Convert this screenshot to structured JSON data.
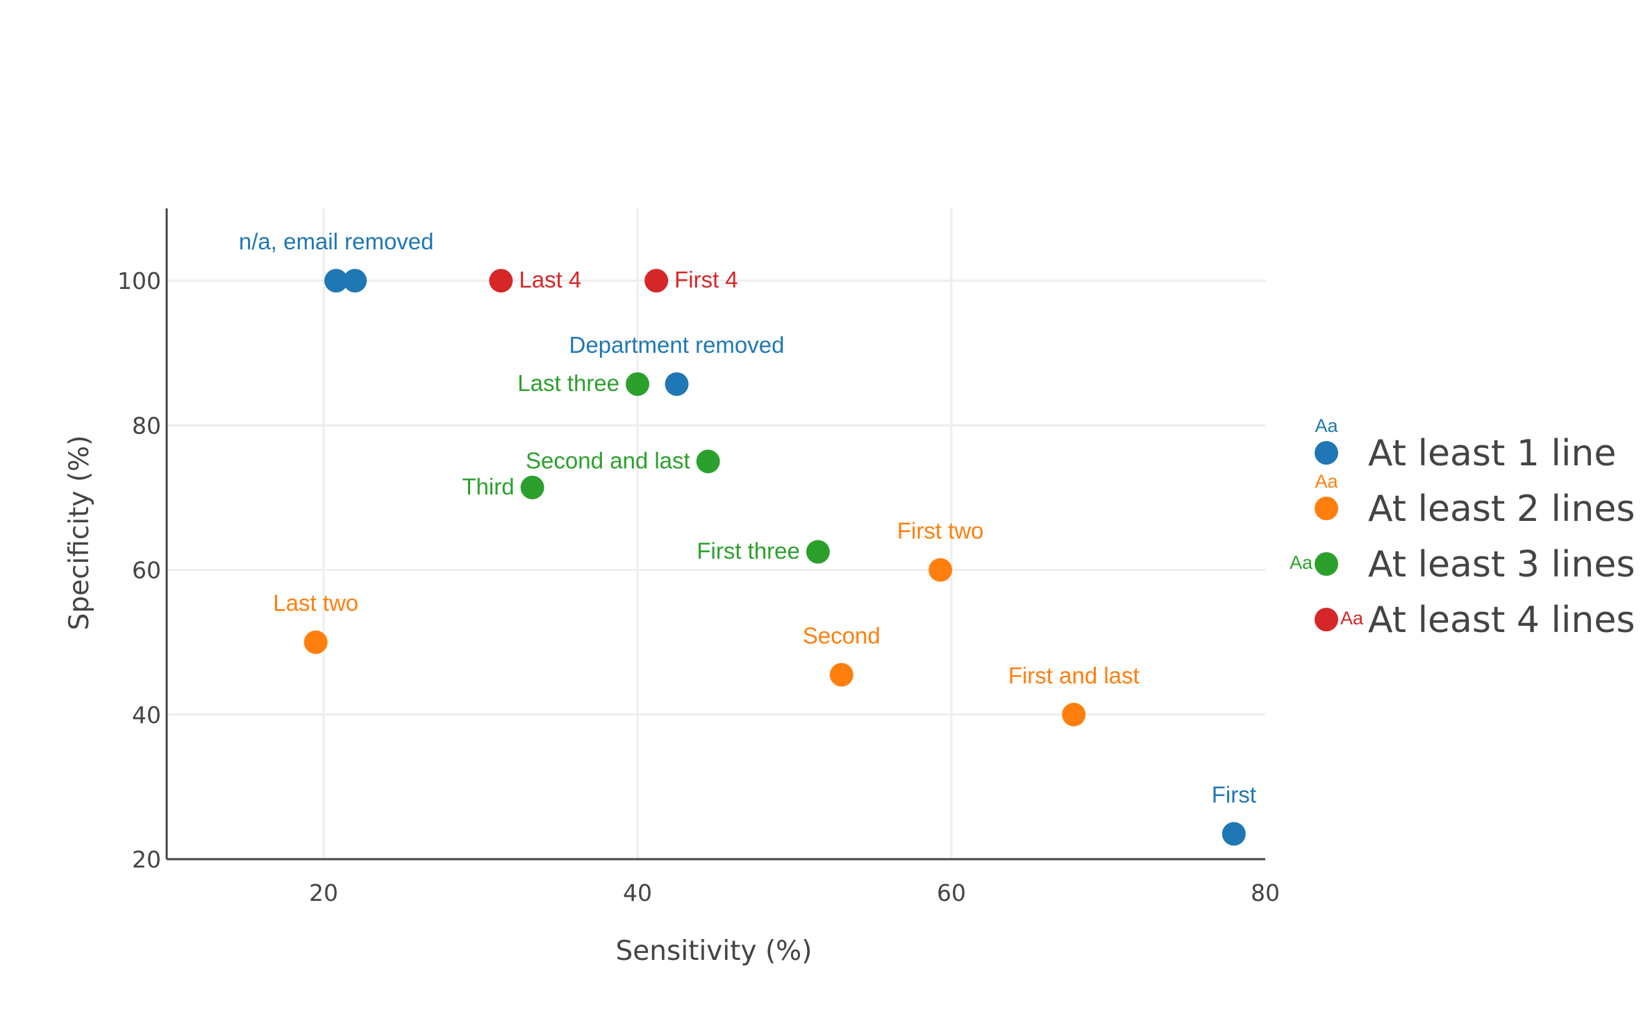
{
  "chart_data": {
    "type": "scatter",
    "xlabel": "Sensitivity (%)",
    "ylabel": "Specificity (%)",
    "xlim": [
      10,
      80
    ],
    "ylim": [
      20,
      110
    ],
    "x_ticks": [
      20,
      40,
      60,
      80
    ],
    "y_ticks": [
      20,
      40,
      60,
      80,
      100
    ],
    "grid": true,
    "legend_position": "right",
    "legend_marker_text": "Aa",
    "series": [
      {
        "name": "At least 1 line",
        "color": "#1f77b4",
        "points": [
          {
            "x": 20.8,
            "y": 100,
            "label": ""
          },
          {
            "x": 22.0,
            "y": 100,
            "label": "n/a, email removed"
          },
          {
            "x": 42.5,
            "y": 85.7,
            "label": "Department removed"
          },
          {
            "x": 78.0,
            "y": 23.5,
            "label": "First"
          }
        ]
      },
      {
        "name": "At least 2 lines",
        "color": "#ff7f0e",
        "points": [
          {
            "x": 19.5,
            "y": 50,
            "label": "Last two"
          },
          {
            "x": 53.0,
            "y": 45.5,
            "label": "Second"
          },
          {
            "x": 59.3,
            "y": 60,
            "label": "First two"
          },
          {
            "x": 67.8,
            "y": 40,
            "label": "First and last"
          }
        ]
      },
      {
        "name": "At least 3 lines",
        "color": "#2ca02c",
        "points": [
          {
            "x": 40.0,
            "y": 85.7,
            "label": "Last three"
          },
          {
            "x": 44.5,
            "y": 75,
            "label": "Second and last"
          },
          {
            "x": 33.3,
            "y": 71.4,
            "label": "Third"
          },
          {
            "x": 51.5,
            "y": 62.5,
            "label": "First three"
          }
        ]
      },
      {
        "name": "At least 4 lines",
        "color": "#d62728",
        "points": [
          {
            "x": 31.3,
            "y": 100,
            "label": "Last 4"
          },
          {
            "x": 41.2,
            "y": 100,
            "label": "First 4"
          }
        ]
      }
    ]
  }
}
